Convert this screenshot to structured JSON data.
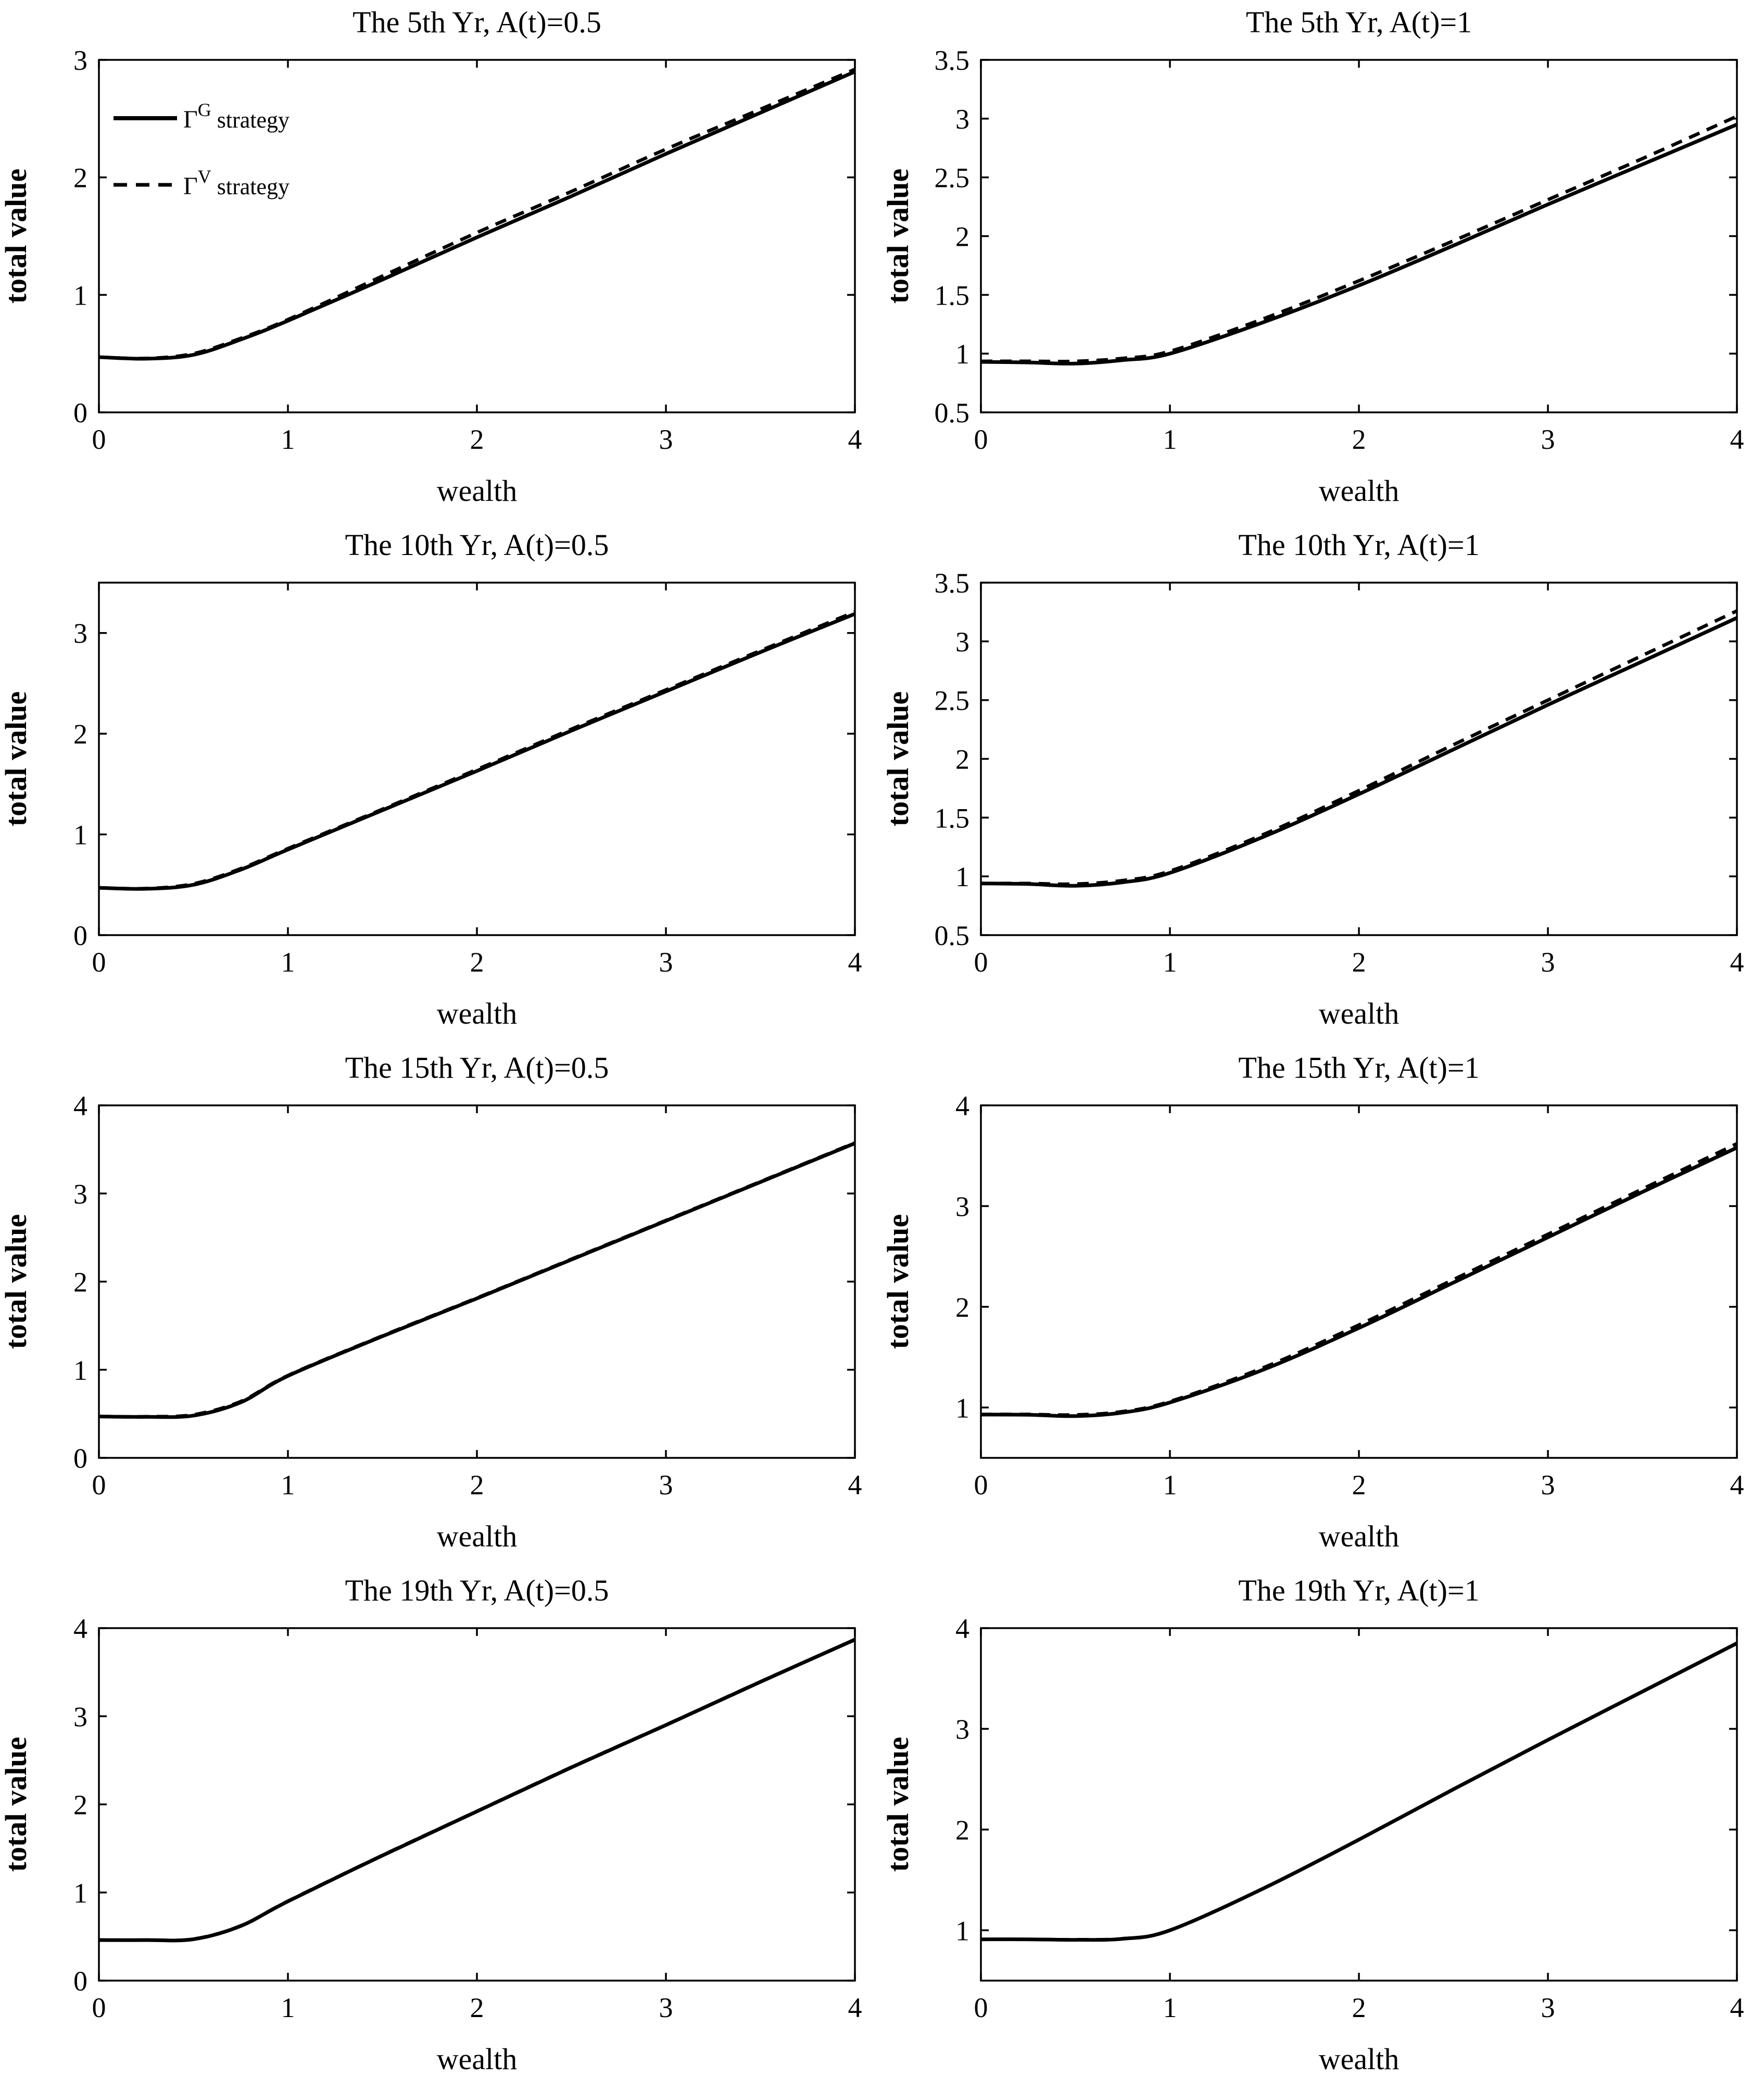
{
  "figure": {
    "background": "#ffffff",
    "line_color": "#000000",
    "xlabel": "wealth",
    "ylabel": "total value",
    "legend": {
      "items": [
        {
          "gamma": "Γ",
          "sup": "G",
          "rest": " strategy",
          "style": "solid"
        },
        {
          "gamma": "Γ",
          "sup": "V",
          "rest": " strategy",
          "style": "dashed"
        }
      ]
    }
  },
  "chart_data": [
    {
      "type": "line",
      "title": "The 5th Yr, A(t)=0.5",
      "xlabel": "wealth",
      "ylabel": "total value",
      "xlim": [
        0,
        4
      ],
      "ylim": [
        0,
        3
      ],
      "xticks": [
        0,
        1,
        2,
        3,
        4
      ],
      "yticks": [
        0,
        1,
        2,
        3
      ],
      "legend": true,
      "x": [
        0,
        0.25,
        0.5,
        0.75,
        1,
        1.5,
        2,
        2.5,
        3,
        3.5,
        4
      ],
      "series": [
        {
          "name": "ΓG strategy",
          "style": "solid",
          "values": [
            0.47,
            0.457,
            0.49,
            0.62,
            0.78,
            1.13,
            1.49,
            1.84,
            2.2,
            2.55,
            2.9
          ]
        },
        {
          "name": "ΓV strategy",
          "style": "dashed",
          "values": [
            0.47,
            0.46,
            0.5,
            0.63,
            0.79,
            1.16,
            1.53,
            1.88,
            2.24,
            2.58,
            2.92
          ]
        }
      ]
    },
    {
      "type": "line",
      "title": "The 5th Yr, A(t)=1",
      "xlabel": "wealth",
      "ylabel": "total value",
      "xlim": [
        0,
        4
      ],
      "ylim": [
        0.5,
        3.5
      ],
      "xticks": [
        0,
        1,
        2,
        3,
        4
      ],
      "yticks": [
        0.5,
        1,
        1.5,
        2,
        2.5,
        3,
        3.5
      ],
      "legend": false,
      "x": [
        0,
        0.25,
        0.5,
        0.75,
        1,
        1.5,
        2,
        2.5,
        3,
        3.5,
        4
      ],
      "series": [
        {
          "name": "ΓG strategy",
          "style": "solid",
          "values": [
            0.93,
            0.925,
            0.915,
            0.945,
            1.0,
            1.27,
            1.58,
            1.92,
            2.27,
            2.61,
            2.95
          ]
        },
        {
          "name": "ΓV strategy",
          "style": "dashed",
          "values": [
            0.935,
            0.935,
            0.935,
            0.96,
            1.02,
            1.3,
            1.62,
            1.96,
            2.31,
            2.66,
            3.02
          ]
        }
      ]
    },
    {
      "type": "line",
      "title": "The 10th Yr, A(t)=0.5",
      "xlabel": "wealth",
      "ylabel": "total value",
      "xlim": [
        0,
        4
      ],
      "ylim": [
        0,
        3.5
      ],
      "xticks": [
        0,
        1,
        2,
        3,
        4
      ],
      "yticks": [
        0,
        1,
        2,
        3
      ],
      "legend": false,
      "x": [
        0,
        0.25,
        0.5,
        0.75,
        1,
        1.5,
        2,
        2.5,
        3,
        3.5,
        4
      ],
      "series": [
        {
          "name": "ΓG strategy",
          "style": "solid",
          "values": [
            0.47,
            0.46,
            0.5,
            0.65,
            0.85,
            1.24,
            1.63,
            2.03,
            2.42,
            2.81,
            3.19
          ]
        },
        {
          "name": "ΓV strategy",
          "style": "dashed",
          "values": [
            0.47,
            0.463,
            0.51,
            0.66,
            0.86,
            1.25,
            1.645,
            2.045,
            2.435,
            2.825,
            3.21
          ]
        }
      ]
    },
    {
      "type": "line",
      "title": "The 10th Yr, A(t)=1",
      "xlabel": "wealth",
      "ylabel": "total value",
      "xlim": [
        0,
        4
      ],
      "ylim": [
        0.5,
        3.5
      ],
      "xticks": [
        0,
        1,
        2,
        3,
        4
      ],
      "yticks": [
        0.5,
        1,
        1.5,
        2,
        2.5,
        3,
        3.5
      ],
      "legend": false,
      "x": [
        0,
        0.25,
        0.5,
        0.75,
        1,
        1.5,
        2,
        2.5,
        3,
        3.5,
        4
      ],
      "series": [
        {
          "name": "ΓG strategy",
          "style": "solid",
          "values": [
            0.94,
            0.935,
            0.92,
            0.95,
            1.03,
            1.34,
            1.7,
            2.08,
            2.46,
            2.83,
            3.2
          ]
        },
        {
          "name": "ΓV strategy",
          "style": "dashed",
          "values": [
            0.94,
            0.94,
            0.935,
            0.965,
            1.045,
            1.36,
            1.73,
            2.12,
            2.5,
            2.88,
            3.26
          ]
        }
      ]
    },
    {
      "type": "line",
      "title": "The 15th Yr, A(t)=0.5",
      "xlabel": "wealth",
      "ylabel": "total value",
      "xlim": [
        0,
        4
      ],
      "ylim": [
        0,
        4
      ],
      "xticks": [
        0,
        1,
        2,
        3,
        4
      ],
      "yticks": [
        0,
        1,
        2,
        3,
        4
      ],
      "legend": false,
      "x": [
        0,
        0.25,
        0.5,
        0.75,
        1,
        1.5,
        2,
        2.5,
        3,
        3.5,
        4
      ],
      "series": [
        {
          "name": "ΓG strategy",
          "style": "solid",
          "values": [
            0.47,
            0.465,
            0.48,
            0.63,
            0.93,
            1.38,
            1.81,
            2.25,
            2.69,
            3.13,
            3.57
          ]
        },
        {
          "name": "ΓV strategy",
          "style": "dashed",
          "values": [
            0.47,
            0.468,
            0.49,
            0.64,
            0.935,
            1.385,
            1.815,
            2.255,
            2.695,
            3.135,
            3.575
          ]
        }
      ]
    },
    {
      "type": "line",
      "title": "The 15th Yr, A(t)=1",
      "xlabel": "wealth",
      "ylabel": "total value",
      "xlim": [
        0,
        4
      ],
      "ylim": [
        0.5,
        4
      ],
      "xticks": [
        0,
        1,
        2,
        3,
        4
      ],
      "yticks": [
        1,
        2,
        3,
        4
      ],
      "legend": false,
      "x": [
        0,
        0.25,
        0.5,
        0.75,
        1,
        1.5,
        2,
        2.5,
        3,
        3.5,
        4
      ],
      "series": [
        {
          "name": "ΓG strategy",
          "style": "solid",
          "values": [
            0.93,
            0.928,
            0.915,
            0.95,
            1.05,
            1.38,
            1.79,
            2.24,
            2.69,
            3.14,
            3.58
          ]
        },
        {
          "name": "ΓV strategy",
          "style": "dashed",
          "values": [
            0.932,
            0.932,
            0.927,
            0.96,
            1.06,
            1.4,
            1.82,
            2.27,
            2.72,
            3.17,
            3.62
          ]
        }
      ]
    },
    {
      "type": "line",
      "title": "The 19th Yr, A(t)=0.5",
      "xlabel": "wealth",
      "ylabel": "total value",
      "xlim": [
        0,
        4
      ],
      "ylim": [
        0,
        4
      ],
      "xticks": [
        0,
        1,
        2,
        3,
        4
      ],
      "yticks": [
        0,
        1,
        2,
        3,
        4
      ],
      "legend": false,
      "x": [
        0,
        0.25,
        0.5,
        0.75,
        1,
        1.5,
        2,
        2.5,
        3,
        3.5,
        4
      ],
      "series": [
        {
          "name": "ΓG strategy",
          "style": "solid",
          "values": [
            0.46,
            0.46,
            0.47,
            0.62,
            0.9,
            1.42,
            1.92,
            2.42,
            2.9,
            3.39,
            3.87
          ]
        },
        {
          "name": "ΓV strategy",
          "style": "dashed",
          "values": [
            0.46,
            0.46,
            0.472,
            0.622,
            0.902,
            1.422,
            1.922,
            2.422,
            2.902,
            3.392,
            3.87
          ]
        }
      ]
    },
    {
      "type": "line",
      "title": "The 19th Yr, A(t)=1",
      "xlabel": "wealth",
      "ylabel": "total value",
      "xlim": [
        0,
        4
      ],
      "ylim": [
        0.5,
        4
      ],
      "xticks": [
        0,
        1,
        2,
        3,
        4
      ],
      "yticks": [
        1,
        2,
        3,
        4
      ],
      "legend": false,
      "x": [
        0,
        0.25,
        0.5,
        0.75,
        1,
        1.5,
        2,
        2.5,
        3,
        3.5,
        4
      ],
      "series": [
        {
          "name": "ΓG strategy",
          "style": "solid",
          "values": [
            0.91,
            0.91,
            0.905,
            0.915,
            1.0,
            1.42,
            1.9,
            2.4,
            2.89,
            3.37,
            3.85
          ]
        },
        {
          "name": "ΓV strategy",
          "style": "dashed",
          "values": [
            0.91,
            0.91,
            0.907,
            0.917,
            1.0,
            1.42,
            1.9,
            2.4,
            2.89,
            3.37,
            3.85
          ]
        }
      ]
    }
  ]
}
